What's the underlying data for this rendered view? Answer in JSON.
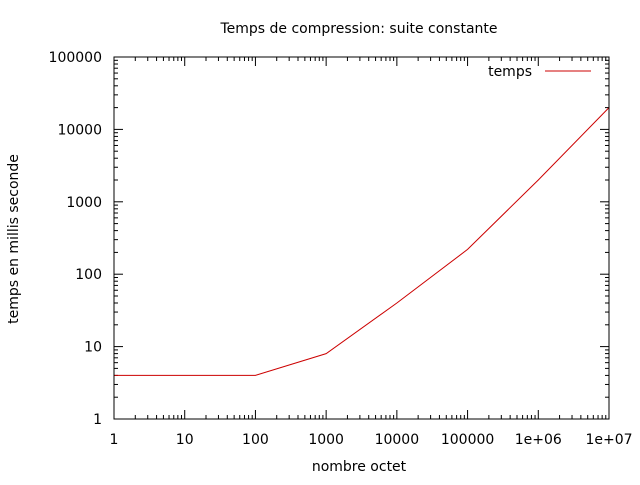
{
  "chart_data": {
    "type": "line",
    "title": "Temps de compression: suite constante",
    "xlabel": "nombre octet",
    "ylabel": "temps en millis seconde",
    "x_scale": "log",
    "y_scale": "log",
    "xlim": [
      1,
      10000000
    ],
    "ylim": [
      1,
      100000
    ],
    "x_ticks": [
      {
        "value": 1,
        "label": "1"
      },
      {
        "value": 10,
        "label": "10"
      },
      {
        "value": 100,
        "label": "100"
      },
      {
        "value": 1000,
        "label": "1000"
      },
      {
        "value": 10000,
        "label": "10000"
      },
      {
        "value": 100000,
        "label": "100000"
      },
      {
        "value": 1000000,
        "label": "1e+06"
      },
      {
        "value": 10000000,
        "label": "1e+07"
      }
    ],
    "y_ticks": [
      {
        "value": 1,
        "label": "1"
      },
      {
        "value": 10,
        "label": "10"
      },
      {
        "value": 100,
        "label": "100"
      },
      {
        "value": 1000,
        "label": "1000"
      },
      {
        "value": 10000,
        "label": "10000"
      },
      {
        "value": 100000,
        "label": "100000"
      }
    ],
    "grid": false,
    "legend_position": "top-right",
    "series": [
      {
        "name": "temps",
        "color": "#cc0000",
        "x": [
          1,
          10,
          100,
          1000,
          10000,
          100000,
          1000000,
          10000000
        ],
        "y": [
          4,
          4,
          4,
          8,
          40,
          220,
          2000,
          20000
        ]
      }
    ]
  }
}
